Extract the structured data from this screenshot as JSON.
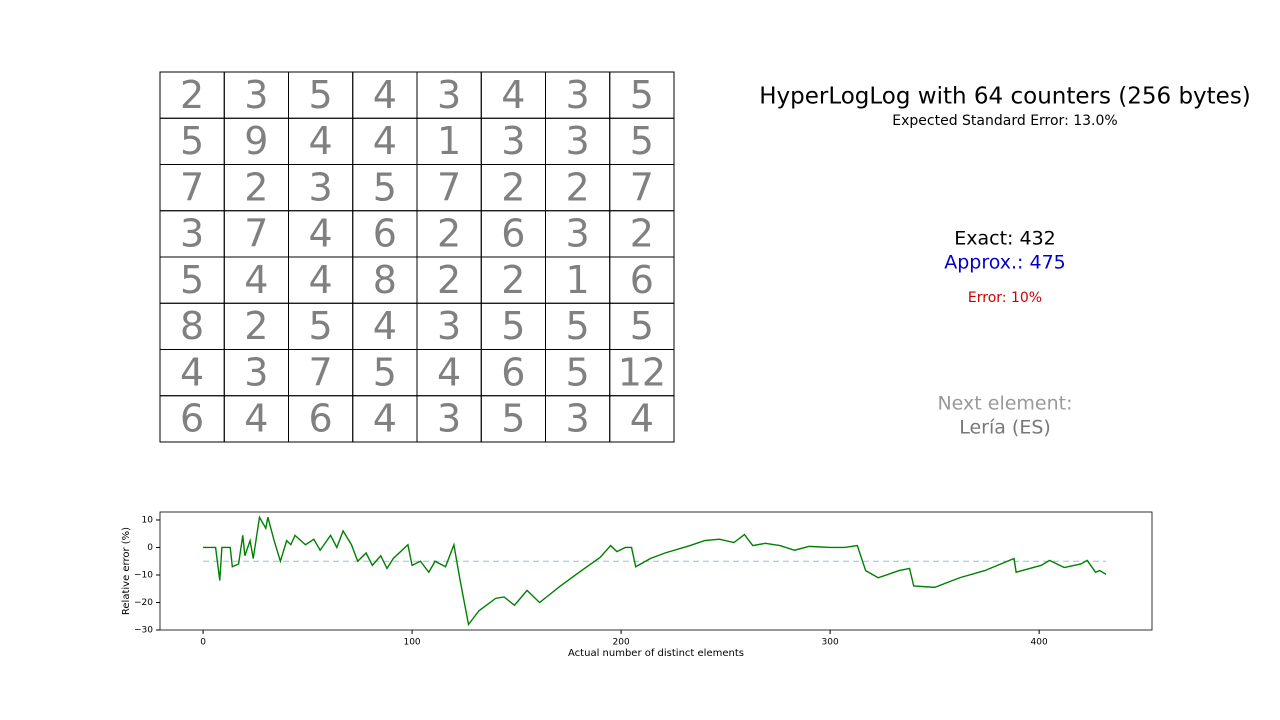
{
  "registers": {
    "rows": [
      [
        2,
        3,
        5,
        4,
        3,
        4,
        3,
        5
      ],
      [
        5,
        9,
        4,
        4,
        1,
        3,
        3,
        5
      ],
      [
        7,
        2,
        3,
        5,
        7,
        2,
        2,
        7
      ],
      [
        3,
        7,
        4,
        6,
        2,
        6,
        3,
        2
      ],
      [
        5,
        4,
        4,
        8,
        2,
        2,
        1,
        6
      ],
      [
        8,
        2,
        5,
        4,
        3,
        5,
        5,
        5
      ],
      [
        4,
        3,
        7,
        5,
        4,
        6,
        5,
        12
      ],
      [
        6,
        4,
        6,
        4,
        3,
        5,
        3,
        4
      ]
    ]
  },
  "info": {
    "title": "HyperLogLog with 64 counters (256 bytes)",
    "subtitle": "Expected Standard Error: 13.0%",
    "exact": "Exact: 432",
    "approx": "Approx.: 475",
    "error": "Error: 10%",
    "next_label": "Next element:",
    "next_value": "Lería (ES)"
  },
  "chart_data": {
    "type": "line",
    "xlabel": "Actual number of distinct elements",
    "ylabel": "Relative error (%)",
    "xlim": [
      -20.6,
      454
    ],
    "ylim": [
      -30,
      12.9
    ],
    "xticks": [
      0,
      100,
      200,
      300,
      400
    ],
    "yticks": [
      10,
      0,
      {
        "value": -10,
        "label": "−10"
      },
      {
        "value": -20,
        "label": "−20"
      },
      {
        "value": -30,
        "label": "−30"
      }
    ],
    "reference_line": {
      "value": -5,
      "color": "#8cc4e0"
    },
    "x": [
      0,
      6,
      8,
      9,
      13,
      14,
      17,
      19,
      20,
      22.5,
      24,
      27,
      30,
      31,
      34,
      37,
      40,
      42,
      44,
      49,
      53,
      56,
      61,
      64,
      67,
      71,
      74,
      78,
      81,
      85,
      88,
      91,
      98,
      100,
      104,
      108,
      111,
      116,
      120,
      123,
      127,
      132,
      140,
      144,
      149,
      155,
      161,
      171,
      180,
      190,
      195,
      198,
      202,
      205,
      207,
      214,
      221,
      233,
      240,
      247,
      254,
      259,
      263,
      269,
      276,
      283,
      290,
      300,
      307,
      313,
      317,
      323,
      333,
      338,
      340,
      350,
      362,
      374,
      388,
      389,
      401,
      405,
      412,
      420,
      423,
      427,
      429,
      432
    ],
    "series": [
      {
        "color": "#008000",
        "values": [
          0,
          0,
          -12,
          0,
          0,
          -7,
          -6,
          4.4,
          -3,
          2.5,
          -4,
          11,
          7,
          11,
          2.5,
          -5,
          2.5,
          1,
          4.4,
          1,
          3,
          -1,
          4.4,
          0,
          6,
          1,
          -5,
          -2,
          -6.5,
          -3,
          -7.6,
          -4,
          1,
          -6.5,
          -5,
          -9,
          -5,
          -7,
          1,
          -12,
          -28,
          -23,
          -18.5,
          -18,
          -21,
          -15.6,
          -20,
          -14,
          -9,
          -3.6,
          0.7,
          -1.5,
          0,
          0,
          -7,
          -4,
          -2,
          0.7,
          2.5,
          3,
          1.8,
          4.7,
          0.7,
          1.5,
          0.7,
          -1,
          0.4,
          0,
          0,
          0.7,
          -8.4,
          -11,
          -8.4,
          -7.6,
          -14,
          -14.5,
          -11,
          -8.4,
          -4,
          -9,
          -6.5,
          -4.7,
          -7.3,
          -6,
          -4.7,
          -9,
          -8.4,
          -9.8
        ]
      }
    ]
  }
}
